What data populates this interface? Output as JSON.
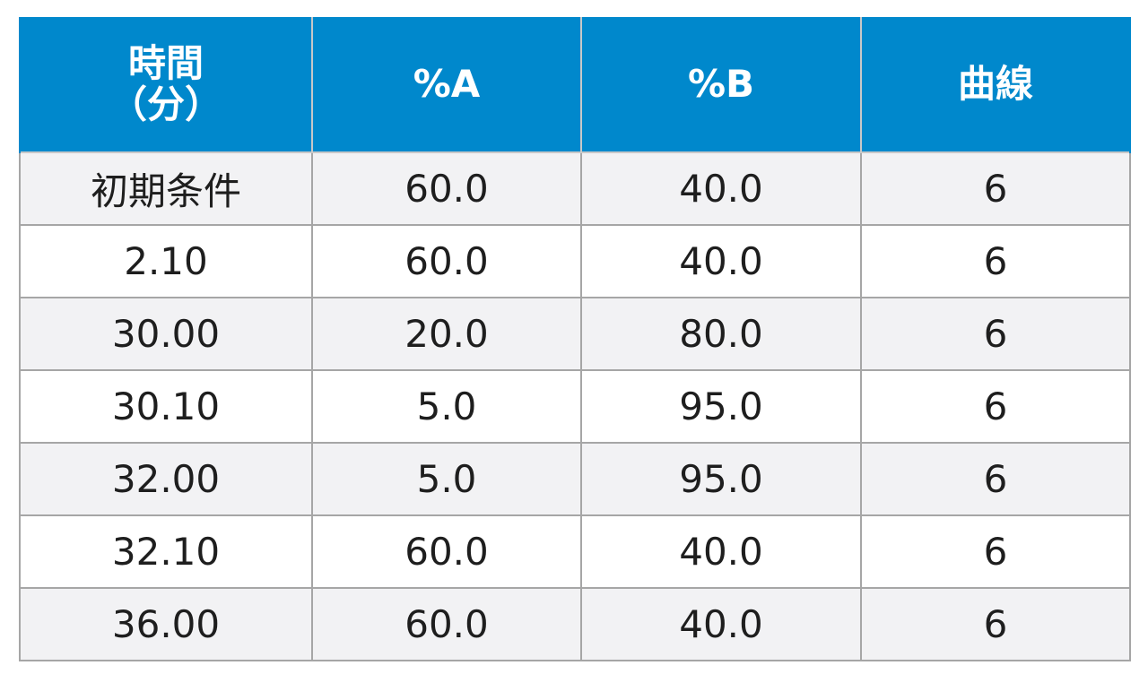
{
  "table": {
    "headers": {
      "time_line1": "時間",
      "time_line2": "（分）",
      "a": "%A",
      "b": "%B",
      "curve": "曲線"
    },
    "rows": [
      {
        "time": "初期条件",
        "a": "60.0",
        "b": "40.0",
        "curve": "6"
      },
      {
        "time": "2.10",
        "a": "60.0",
        "b": "40.0",
        "curve": "6"
      },
      {
        "time": "30.00",
        "a": "20.0",
        "b": "80.0",
        "curve": "6"
      },
      {
        "time": "30.10",
        "a": "5.0",
        "b": "95.0",
        "curve": "6"
      },
      {
        "time": "32.00",
        "a": "5.0",
        "b": "95.0",
        "curve": "6"
      },
      {
        "time": "32.10",
        "a": "60.0",
        "b": "40.0",
        "curve": "6"
      },
      {
        "time": "36.00",
        "a": "60.0",
        "b": "40.0",
        "curve": "6"
      }
    ]
  },
  "colors": {
    "header_background": "#0088cc",
    "header_text": "#ffffff",
    "row_shaded": "#f2f2f4",
    "row_plain": "#ffffff",
    "grid_line": "#a6a6a6"
  }
}
